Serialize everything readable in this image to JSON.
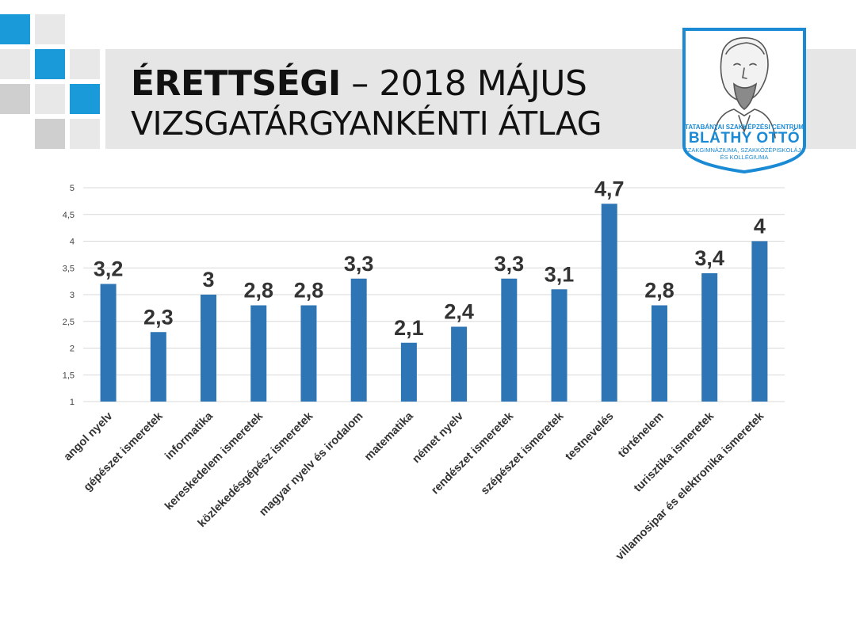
{
  "header": {
    "title_bold": "ÉRETTSÉGI",
    "title_rest": " – 2018 MÁJUS",
    "subtitle": "VIZSGATÁRGYANKÉNTI ÁTLAG"
  },
  "logo": {
    "line1": "TATABÁNYAI SZAKKÉPZÉSI CENTRUM",
    "line2": "BLÁTHY OTTÓ",
    "line3": "SZAKGIMNÁZIUMA, SZAKKÖZÉPISKOLÁJA",
    "line4": "ÉS KOLLÉGIUMA",
    "color": "#1a8ad4"
  },
  "colors": {
    "accent_blue": "#1a9ad8",
    "square_light": "#e8e8e8",
    "square_dark": "#cfcfcf",
    "bar": "#2e75b6"
  },
  "chart_data": {
    "type": "bar",
    "categories": [
      "angol nyelv",
      "gépészet ismeretek",
      "informatika",
      "kereskedelem ismeretek",
      "közlekedésgépész ismeretek",
      "magyar nyelv és irodalom",
      "matematika",
      "német nyelv",
      "rendészet ismeretek",
      "szépészet ismeretek",
      "testnevelés",
      "történelem",
      "turisztika ismeretek",
      "villamosipar és elektronika ismeretek"
    ],
    "values": [
      3.2,
      2.3,
      3,
      2.8,
      2.8,
      3.3,
      2.1,
      2.4,
      3.3,
      3.1,
      4.7,
      2.8,
      3.4,
      4
    ],
    "value_labels": [
      "3,2",
      "2,3",
      "3",
      "2,8",
      "2,8",
      "3,3",
      "2,1",
      "2,4",
      "3,3",
      "3,1",
      "4,7",
      "2,8",
      "3,4",
      "4"
    ],
    "ylim": [
      1,
      5
    ],
    "y_ticks": [
      "1",
      "1,5",
      "2",
      "2,5",
      "3",
      "3,5",
      "4",
      "4,5",
      "5"
    ],
    "grid": true
  }
}
